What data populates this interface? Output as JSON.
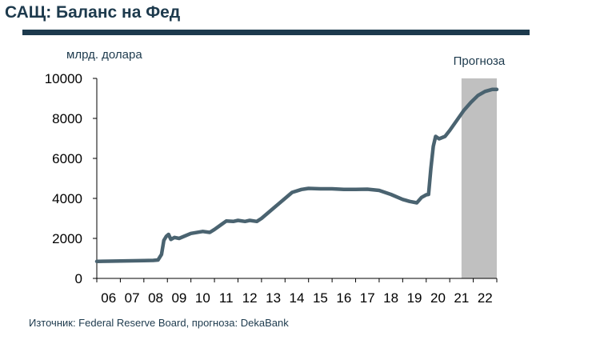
{
  "header": {
    "title": "САЩ: Баланс на Фед"
  },
  "footer": {
    "source": "Източник: Federal Reserve Board, прогноза: DekaBank"
  },
  "colors": {
    "line": "#4a6370",
    "forecast_shade": "#c0c0c0",
    "title": "#1d3a4d"
  },
  "chart_data": {
    "type": "line",
    "title": "САЩ: Баланс на Фед",
    "ylabel": "млрд. долара",
    "xlabel": "",
    "ylim": [
      0,
      10000
    ],
    "yticks": [
      0,
      2000,
      4000,
      6000,
      8000,
      10000
    ],
    "xlim": [
      2006,
      2023
    ],
    "xtick_labels": [
      "06",
      "07",
      "08",
      "09",
      "10",
      "11",
      "12",
      "13",
      "14",
      "15",
      "16",
      "17",
      "18",
      "19",
      "20",
      "21",
      "22"
    ],
    "grid": false,
    "forecast": {
      "label": "Прогноза",
      "from": 2021.5,
      "to": 2023
    },
    "series": [
      {
        "points": [
          [
            2006.0,
            850
          ],
          [
            2006.5,
            860
          ],
          [
            2007.0,
            870
          ],
          [
            2007.5,
            880
          ],
          [
            2008.0,
            890
          ],
          [
            2008.4,
            900
          ],
          [
            2008.6,
            920
          ],
          [
            2008.75,
            1200
          ],
          [
            2008.85,
            1900
          ],
          [
            2008.95,
            2100
          ],
          [
            2009.05,
            2200
          ],
          [
            2009.15,
            1950
          ],
          [
            2009.3,
            2050
          ],
          [
            2009.5,
            2000
          ],
          [
            2009.7,
            2100
          ],
          [
            2010.0,
            2250
          ],
          [
            2010.5,
            2350
          ],
          [
            2010.8,
            2300
          ],
          [
            2011.0,
            2450
          ],
          [
            2011.3,
            2700
          ],
          [
            2011.5,
            2870
          ],
          [
            2011.8,
            2850
          ],
          [
            2012.0,
            2900
          ],
          [
            2012.3,
            2850
          ],
          [
            2012.5,
            2900
          ],
          [
            2012.8,
            2850
          ],
          [
            2013.0,
            3000
          ],
          [
            2013.3,
            3300
          ],
          [
            2013.6,
            3600
          ],
          [
            2014.0,
            4000
          ],
          [
            2014.3,
            4300
          ],
          [
            2014.7,
            4450
          ],
          [
            2015.0,
            4500
          ],
          [
            2015.5,
            4480
          ],
          [
            2016.0,
            4480
          ],
          [
            2016.5,
            4450
          ],
          [
            2017.0,
            4450
          ],
          [
            2017.5,
            4460
          ],
          [
            2018.0,
            4400
          ],
          [
            2018.5,
            4200
          ],
          [
            2019.0,
            3950
          ],
          [
            2019.3,
            3850
          ],
          [
            2019.6,
            3780
          ],
          [
            2019.8,
            4050
          ],
          [
            2020.0,
            4180
          ],
          [
            2020.1,
            4200
          ],
          [
            2020.2,
            5500
          ],
          [
            2020.3,
            6600
          ],
          [
            2020.4,
            7100
          ],
          [
            2020.55,
            6980
          ],
          [
            2020.8,
            7100
          ],
          [
            2021.0,
            7400
          ],
          [
            2021.3,
            7900
          ],
          [
            2021.6,
            8400
          ],
          [
            2021.9,
            8800
          ],
          [
            2022.2,
            9150
          ],
          [
            2022.5,
            9350
          ],
          [
            2022.8,
            9450
          ],
          [
            2023.0,
            9450
          ]
        ]
      }
    ]
  }
}
